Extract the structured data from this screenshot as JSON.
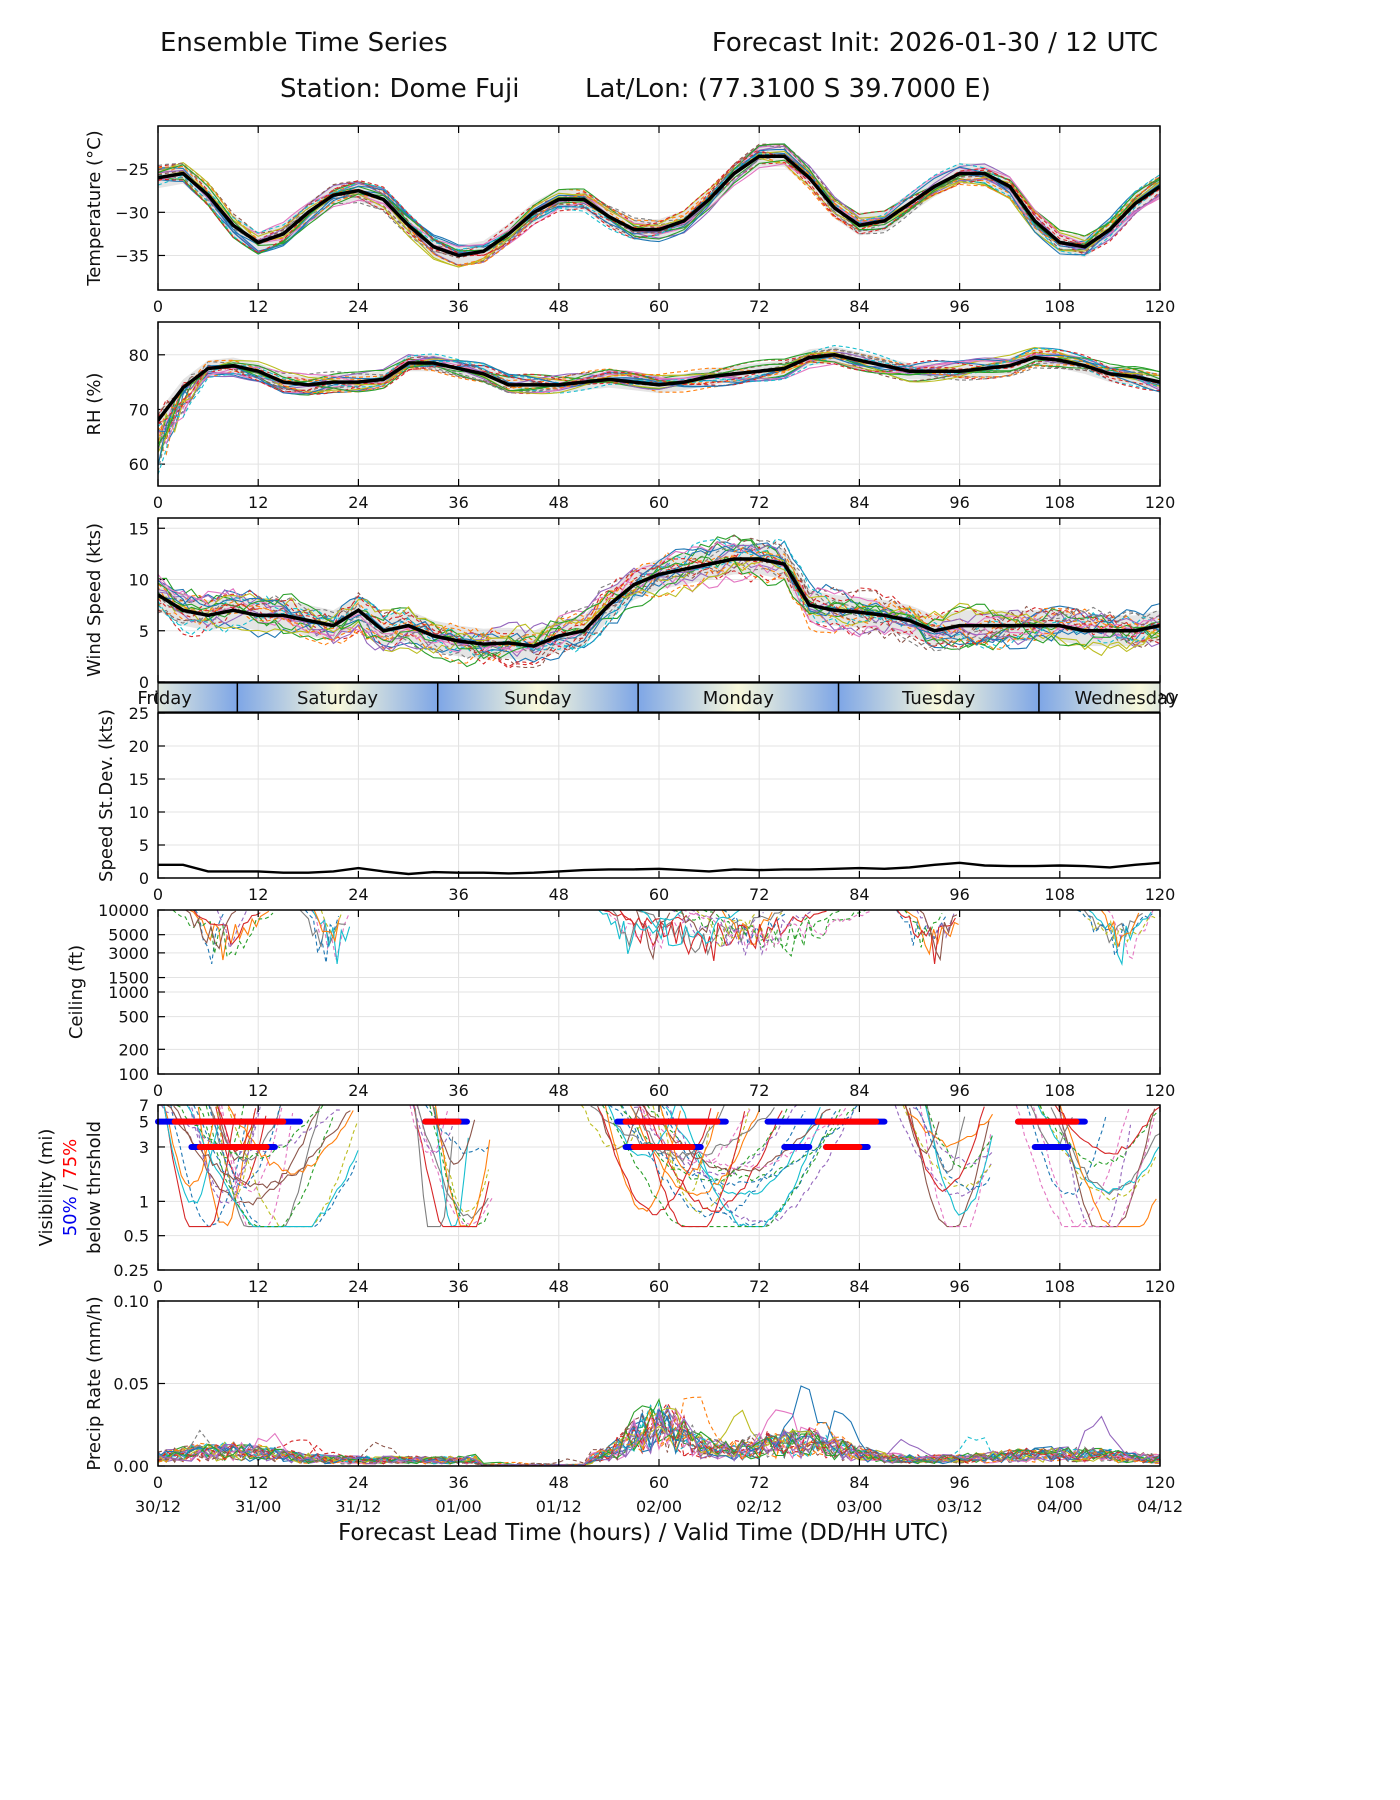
{
  "header": {
    "left_title": "Ensemble Time Series",
    "right_title": "Forecast Init: 2026-01-30 / 12 UTC",
    "station": "Station: Dome Fuji",
    "latlon": "Lat/Lon: (77.3100 S 39.7000 E)"
  },
  "xaxis": {
    "ticks": [
      0,
      12,
      24,
      36,
      48,
      60,
      72,
      84,
      96,
      108,
      120
    ],
    "valid_labels": [
      "30/12",
      "31/00",
      "31/12",
      "01/00",
      "01/12",
      "02/00",
      "02/12",
      "03/00",
      "03/12",
      "04/00",
      "04/12"
    ],
    "label": "Forecast Lead Time (hours) / Valid Time (DD/HH UTC)"
  },
  "day_band": {
    "days": [
      "Friday",
      "Saturday",
      "Sunday",
      "Monday",
      "Tuesday",
      "Wednesday"
    ],
    "boundaries": [
      9.5,
      33.5,
      57.5,
      81.5,
      105.5
    ],
    "color_day": "#f9f9dc",
    "color_night": "#7ea6e6"
  },
  "chart_data": [
    {
      "id": "temperature",
      "type": "line",
      "ylabel": "Temperature (°C)",
      "ylim": [
        -39,
        -20
      ],
      "yticks": [
        -35,
        -30,
        -25
      ],
      "mean": {
        "x": [
          0,
          3,
          6,
          9,
          12,
          15,
          18,
          21,
          24,
          27,
          30,
          33,
          36,
          39,
          42,
          45,
          48,
          51,
          54,
          57,
          60,
          63,
          66,
          69,
          72,
          75,
          78,
          81,
          84,
          87,
          90,
          93,
          96,
          99,
          102,
          105,
          108,
          111,
          114,
          117,
          120
        ],
        "y": [
          -26,
          -25.5,
          -28,
          -31.5,
          -33.5,
          -32.5,
          -30,
          -28,
          -27.5,
          -28.5,
          -31.5,
          -34,
          -35,
          -34.5,
          -32.5,
          -30,
          -28.5,
          -28.5,
          -30.5,
          -32,
          -32,
          -31,
          -28.5,
          -25.5,
          -23.5,
          -23.5,
          -26,
          -29.5,
          -31.5,
          -31,
          -29,
          -27,
          -25.5,
          -25.5,
          -27,
          -31,
          -33.5,
          -34,
          -32,
          -29,
          -27
        ]
      },
      "spread": 1.2
    },
    {
      "id": "rh",
      "type": "line",
      "ylabel": "RH (%)",
      "ylim": [
        56,
        86
      ],
      "yticks": [
        60,
        70,
        80
      ],
      "mean": {
        "x": [
          0,
          3,
          6,
          9,
          12,
          15,
          18,
          21,
          24,
          27,
          30,
          33,
          36,
          39,
          42,
          45,
          48,
          51,
          54,
          57,
          60,
          63,
          66,
          69,
          72,
          75,
          78,
          81,
          84,
          87,
          90,
          93,
          96,
          99,
          102,
          105,
          108,
          111,
          114,
          117,
          120
        ],
        "y": [
          68,
          74,
          77.5,
          78,
          77,
          75,
          74.5,
          75,
          75,
          75.5,
          78.5,
          78.5,
          77.5,
          76.5,
          74.5,
          74.5,
          74.5,
          75,
          75.5,
          75,
          74.5,
          75,
          76,
          76.5,
          77,
          77.5,
          79.5,
          80,
          79,
          78,
          77,
          77,
          77,
          77.5,
          78,
          79.5,
          79,
          78,
          76.5,
          76,
          75
        ]
      },
      "spread": 1.5
    },
    {
      "id": "wind",
      "type": "line",
      "ylabel": "Wind Speed (kts)",
      "ylim": [
        0,
        16
      ],
      "yticks": [
        0,
        5,
        10,
        15
      ],
      "mean": {
        "x": [
          0,
          3,
          6,
          9,
          12,
          15,
          18,
          21,
          24,
          27,
          30,
          33,
          36,
          39,
          42,
          45,
          48,
          51,
          54,
          57,
          60,
          63,
          66,
          69,
          72,
          75,
          78,
          81,
          84,
          87,
          90,
          93,
          96,
          99,
          102,
          105,
          108,
          111,
          114,
          117,
          120
        ],
        "y": [
          8.5,
          7,
          6.5,
          7,
          6.5,
          6.5,
          6,
          5.5,
          7,
          5,
          5.5,
          4.5,
          4,
          3.7,
          3.8,
          3.5,
          4.5,
          5,
          7.5,
          9.5,
          10.5,
          11,
          11.5,
          12,
          12,
          11.5,
          7.5,
          7,
          6.8,
          6.5,
          6,
          5,
          5.5,
          5.5,
          5.5,
          5.5,
          5.5,
          5,
          5,
          5,
          5.5
        ]
      },
      "spread": 1.5
    },
    {
      "id": "speed_sd",
      "type": "line",
      "ylabel": "Speed St.Dev. (kts)",
      "ylim": [
        0,
        25
      ],
      "yticks": [
        0,
        5,
        10,
        15,
        20,
        25
      ],
      "mean": {
        "x": [
          0,
          3,
          6,
          9,
          12,
          15,
          18,
          21,
          24,
          27,
          30,
          33,
          36,
          39,
          42,
          45,
          48,
          51,
          54,
          57,
          60,
          63,
          66,
          69,
          72,
          75,
          78,
          81,
          84,
          87,
          90,
          93,
          96,
          99,
          102,
          105,
          108,
          111,
          114,
          117,
          120
        ],
        "y": [
          2,
          2,
          1,
          1,
          1,
          0.8,
          0.8,
          1,
          1.5,
          1,
          0.6,
          0.9,
          0.8,
          0.8,
          0.7,
          0.8,
          1,
          1.2,
          1.3,
          1.3,
          1.4,
          1.2,
          1,
          1.3,
          1.2,
          1.3,
          1.3,
          1.4,
          1.5,
          1.4,
          1.6,
          2,
          2.3,
          1.9,
          1.8,
          1.8,
          1.9,
          1.8,
          1.6,
          2,
          2.3
        ]
      }
    },
    {
      "id": "ceiling",
      "type": "line",
      "ylabel": "Ceiling (ft)",
      "ylim": [
        100,
        10000
      ],
      "scale": "log",
      "yticks": [
        100,
        200,
        500,
        1000,
        1500,
        3000,
        5000,
        10000
      ]
    },
    {
      "id": "visibility",
      "type": "line",
      "ylabel": "Visibility (mi)",
      "ylabel_blue": "50%",
      "ylabel_sep": " / ",
      "ylabel_red": "75%",
      "ylabel_line3": "below thrshold",
      "ylim": [
        0.25,
        7
      ],
      "scale": "log",
      "yticks": [
        0.25,
        0.5,
        1,
        3,
        5,
        7
      ],
      "threshold_bars": [
        {
          "color": "blue",
          "level": 5,
          "x": [
            [
              0,
              17
            ],
            [
              32,
              37
            ],
            [
              55,
              68
            ],
            [
              73,
              87
            ],
            [
              103,
              111
            ]
          ]
        },
        {
          "color": "red",
          "level": 5,
          "x": [
            [
              2,
              15
            ],
            [
              32,
              36
            ],
            [
              56,
              67
            ],
            [
              79,
              86
            ],
            [
              103,
              110
            ]
          ]
        },
        {
          "color": "blue",
          "level": 3,
          "x": [
            [
              4,
              14
            ],
            [
              56,
              65
            ],
            [
              75,
              78
            ],
            [
              80,
              85
            ],
            [
              105,
              109
            ]
          ]
        },
        {
          "color": "red",
          "level": 3,
          "x": [
            [
              5,
              13
            ],
            [
              57,
              64
            ],
            [
              80,
              84
            ]
          ]
        }
      ]
    },
    {
      "id": "precip",
      "type": "line",
      "ylabel": "Precip Rate (mm/h)",
      "ylim": [
        0,
        0.1
      ],
      "yticks": [
        0,
        0.05,
        0.1
      ],
      "ytick_labels": [
        "0.00",
        "0.05",
        "0.10"
      ]
    }
  ]
}
